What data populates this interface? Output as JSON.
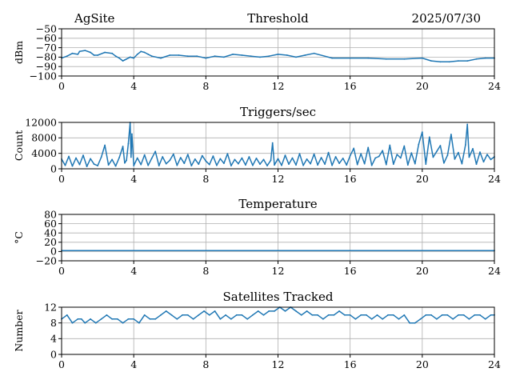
{
  "header": {
    "site": "AgSite",
    "title": "Threshold",
    "date": "2025/07/30"
  },
  "colors": {
    "series": "#1f77b4",
    "grid": "#b0b0b0",
    "axis": "#000000"
  },
  "chart_data": [
    {
      "type": "line",
      "title": "",
      "ylabel": "dBm",
      "xlabel": "",
      "xlim": [
        0,
        24
      ],
      "ylim": [
        -100,
        -50
      ],
      "xticks": [
        0,
        4,
        8,
        12,
        16,
        20,
        24
      ],
      "yticks": [
        -100,
        -90,
        -80,
        -70,
        -60,
        -50
      ],
      "ytick_labels": [
        "−100",
        "−90",
        "−80",
        "−70",
        "−60",
        "−50"
      ],
      "grid": true,
      "series": [
        {
          "x": [
            0,
            0.3,
            0.6,
            0.9,
            1.0,
            1.3,
            1.6,
            1.8,
            2.0,
            2.4,
            2.8,
            3.0,
            3.2,
            3.4,
            3.5,
            3.6,
            3.8,
            4.0,
            4.2,
            4.4,
            4.6,
            4.8,
            5.0,
            5.5,
            6.0,
            6.5,
            7.0,
            7.5,
            8.0,
            8.5,
            9.0,
            9.5,
            10.0,
            10.5,
            11.0,
            11.5,
            12.0,
            12.5,
            13.0,
            13.5,
            14.0,
            15.0,
            16.0,
            17.0,
            18.0,
            19.0,
            20.0,
            20.5,
            21.0,
            21.5,
            22.0,
            22.5,
            23.0,
            23.5,
            24.0
          ],
          "y": [
            -81,
            -79,
            -76,
            -77,
            -74,
            -73,
            -75,
            -78,
            -78,
            -75,
            -76,
            -79,
            -81,
            -84,
            -83,
            -82,
            -80,
            -81,
            -77,
            -74,
            -75,
            -77,
            -79,
            -81,
            -78,
            -78,
            -79,
            -79,
            -81,
            -79,
            -80,
            -77,
            -78,
            -79,
            -80,
            -79,
            -77,
            -78,
            -80,
            -78,
            -76,
            -81,
            -81,
            -81,
            -82,
            -82,
            -81,
            -84,
            -85,
            -85,
            -84,
            -84,
            -82,
            -81,
            -81
          ]
        }
      ]
    },
    {
      "type": "line",
      "title": "Triggers/sec",
      "ylabel": "Count",
      "xlabel": "",
      "xlim": [
        0,
        24
      ],
      "ylim": [
        0,
        12000
      ],
      "xticks": [
        0,
        4,
        8,
        12,
        16,
        20,
        24
      ],
      "yticks": [
        0,
        4000,
        8000,
        12000
      ],
      "ytick_labels": [
        "0",
        "4000",
        "8000",
        "12000"
      ],
      "grid": true,
      "series": [
        {
          "x": [
            0,
            0.2,
            0.4,
            0.6,
            0.8,
            1.0,
            1.2,
            1.4,
            1.6,
            1.8,
            2.0,
            2.2,
            2.4,
            2.6,
            2.8,
            3.0,
            3.2,
            3.4,
            3.5,
            3.6,
            3.7,
            3.8,
            3.85,
            3.9,
            4.0,
            4.2,
            4.4,
            4.6,
            4.8,
            5.0,
            5.2,
            5.4,
            5.6,
            5.8,
            6.0,
            6.2,
            6.4,
            6.6,
            6.8,
            7.0,
            7.2,
            7.4,
            7.6,
            7.8,
            8.0,
            8.2,
            8.4,
            8.6,
            8.8,
            9.0,
            9.2,
            9.4,
            9.6,
            9.8,
            10.0,
            10.2,
            10.4,
            10.6,
            10.8,
            11.0,
            11.2,
            11.4,
            11.6,
            11.7,
            11.8,
            12.0,
            12.2,
            12.4,
            12.6,
            12.8,
            13.0,
            13.2,
            13.4,
            13.6,
            13.8,
            14.0,
            14.2,
            14.4,
            14.6,
            14.8,
            15.0,
            15.2,
            15.4,
            15.6,
            15.8,
            16.0,
            16.2,
            16.4,
            16.6,
            16.8,
            17.0,
            17.2,
            17.4,
            17.6,
            17.8,
            18.0,
            18.2,
            18.4,
            18.6,
            18.8,
            19.0,
            19.2,
            19.4,
            19.6,
            19.8,
            20.0,
            20.2,
            20.4,
            20.6,
            20.8,
            21.0,
            21.2,
            21.4,
            21.6,
            21.8,
            22.0,
            22.2,
            22.4,
            22.5,
            22.6,
            22.8,
            23.0,
            23.2,
            23.4,
            23.6,
            23.8,
            24.0
          ],
          "y": [
            2500,
            900,
            3200,
            700,
            2800,
            1100,
            3500,
            600,
            2600,
            1200,
            800,
            3000,
            6100,
            1000,
            2400,
            700,
            2900,
            5800,
            1500,
            2200,
            6500,
            12000,
            3000,
            9000,
            800,
            2800,
            1100,
            3600,
            900,
            2700,
            4500,
            800,
            3100,
            1300,
            2200,
            3800,
            900,
            2900,
            1400,
            3700,
            800,
            2500,
            1200,
            3400,
            2000,
            1100,
            3300,
            900,
            2600,
            1400,
            3900,
            800,
            2400,
            1300,
            2800,
            1000,
            3100,
            900,
            2700,
            1200,
            2400,
            800,
            2200,
            6700,
            1000,
            2600,
            900,
            3500,
            1200,
            2800,
            1000,
            3900,
            900,
            2500,
            1300,
            3800,
            1000,
            2900,
            1200,
            4200,
            900,
            3100,
            1400,
            2700,
            1000,
            3400,
            5300,
            1100,
            3900,
            1300,
            5500,
            900,
            2800,
            3200,
            4700,
            1100,
            6100,
            1200,
            3700,
            2800,
            5900,
            1000,
            4100,
            1300,
            6300,
            9500,
            1200,
            8200,
            3000,
            4500,
            6000,
            1500,
            3500,
            8900,
            2500,
            4200,
            1300,
            6200,
            11500,
            3000,
            5200,
            1200,
            4300,
            1800,
            3700,
            2400,
            3100
          ]
        }
      ]
    },
    {
      "type": "line",
      "title": "Temperature",
      "ylabel": "°C",
      "xlabel": "",
      "xlim": [
        0,
        24
      ],
      "ylim": [
        -20,
        80
      ],
      "xticks": [
        0,
        4,
        8,
        12,
        16,
        20,
        24
      ],
      "yticks": [
        -20,
        0,
        20,
        40,
        60,
        80
      ],
      "ytick_labels": [
        "−20",
        "0",
        "20",
        "40",
        "60",
        "80"
      ],
      "grid": true,
      "series": [
        {
          "x": [
            0,
            24
          ],
          "y": [
            2,
            2
          ]
        }
      ]
    },
    {
      "type": "line",
      "title": "Satellites Tracked",
      "ylabel": "Number",
      "xlabel": "",
      "xlim": [
        0,
        24
      ],
      "ylim": [
        0,
        12
      ],
      "xticks": [
        0,
        4,
        8,
        12,
        16,
        20,
        24
      ],
      "yticks": [
        0,
        4,
        8,
        12
      ],
      "ytick_labels": [
        "0",
        "4",
        "8",
        "12"
      ],
      "grid": true,
      "series": [
        {
          "x": [
            0,
            0.3,
            0.6,
            0.9,
            1.1,
            1.3,
            1.6,
            1.9,
            2.2,
            2.5,
            2.8,
            3.1,
            3.4,
            3.7,
            4.0,
            4.3,
            4.6,
            4.9,
            5.2,
            5.5,
            5.8,
            6.1,
            6.4,
            6.7,
            7.0,
            7.3,
            7.6,
            7.9,
            8.2,
            8.5,
            8.8,
            9.1,
            9.4,
            9.7,
            10.0,
            10.3,
            10.6,
            10.9,
            11.2,
            11.5,
            11.8,
            12.1,
            12.4,
            12.7,
            13.0,
            13.3,
            13.6,
            13.9,
            14.2,
            14.5,
            14.8,
            15.1,
            15.4,
            15.7,
            16.0,
            16.3,
            16.6,
            16.9,
            17.2,
            17.5,
            17.8,
            18.1,
            18.4,
            18.7,
            19.0,
            19.3,
            19.6,
            19.9,
            20.2,
            20.5,
            20.8,
            21.1,
            21.4,
            21.7,
            22.0,
            22.3,
            22.6,
            22.9,
            23.2,
            23.5,
            23.8,
            24.0
          ],
          "y": [
            9,
            10,
            8,
            9,
            9,
            8,
            9,
            8,
            9,
            10,
            9,
            9,
            8,
            9,
            9,
            8,
            10,
            9,
            9,
            10,
            11,
            10,
            9,
            10,
            10,
            9,
            10,
            11,
            10,
            11,
            9,
            10,
            9,
            10,
            10,
            9,
            10,
            11,
            10,
            11,
            11,
            12,
            11,
            12,
            11,
            10,
            11,
            10,
            10,
            9,
            10,
            10,
            11,
            10,
            10,
            9,
            10,
            10,
            9,
            10,
            9,
            10,
            10,
            9,
            10,
            8,
            8,
            9,
            10,
            10,
            9,
            10,
            10,
            9,
            10,
            10,
            9,
            10,
            10,
            9,
            10,
            10
          ]
        }
      ]
    }
  ]
}
